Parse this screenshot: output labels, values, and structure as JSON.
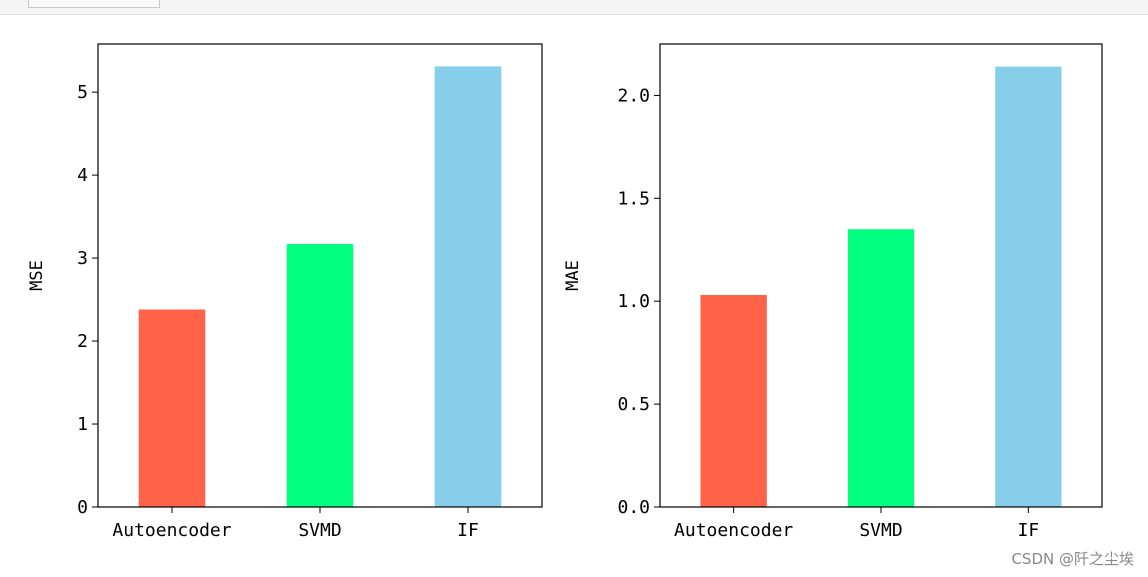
{
  "chart_data": [
    {
      "type": "bar",
      "categories": [
        "Autoencoder",
        "SVMD",
        "IF"
      ],
      "values": [
        2.38,
        3.17,
        5.31
      ],
      "colors": [
        "#ff6347",
        "#00ff7f",
        "#87ceeb"
      ],
      "xlabel": "",
      "ylabel": "MSE",
      "ylim": [
        0,
        5.58
      ],
      "yticks": [
        0,
        1,
        2,
        3,
        4,
        5
      ],
      "ytick_labels": [
        "0",
        "1",
        "2",
        "3",
        "4",
        "5"
      ],
      "grid": false
    },
    {
      "type": "bar",
      "categories": [
        "Autoencoder",
        "SVMD",
        "IF"
      ],
      "values": [
        1.03,
        1.35,
        2.14
      ],
      "colors": [
        "#ff6347",
        "#00ff7f",
        "#87ceeb"
      ],
      "xlabel": "",
      "ylabel": "MAE",
      "ylim": [
        0,
        2.25
      ],
      "yticks": [
        0,
        0.5,
        1.0,
        1.5,
        2.0
      ],
      "ytick_labels": [
        "0.0",
        "0.5",
        "1.0",
        "1.5",
        "2.0"
      ],
      "grid": false
    }
  ],
  "watermark": "CSDN @阡之尘埃"
}
